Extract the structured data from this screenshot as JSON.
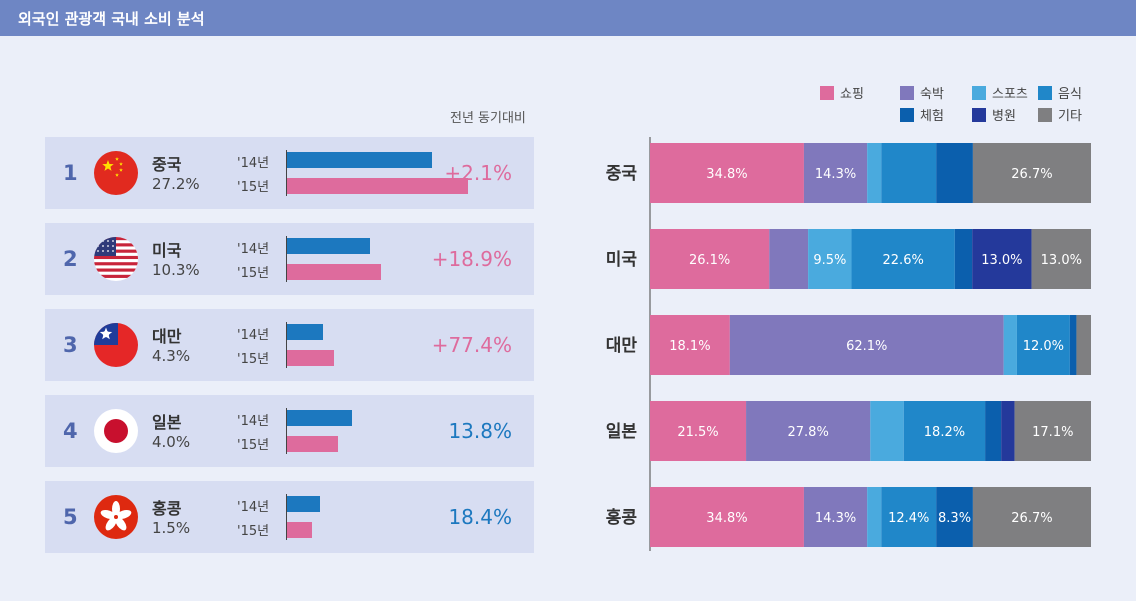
{
  "header": {
    "title": "외국인 관광객 국내 소비 분석"
  },
  "yoy_header": "전년 동기대비",
  "colors": {
    "bar14": "#1c78bf",
    "bar15": "#de6b9d",
    "up": "#de6b9d",
    "flat": "#1c78bf"
  },
  "chart_data": [
    {
      "type": "bar",
      "orientation": "horizontal",
      "series": [
        {
          "name": "'14년",
          "color": "#1c78bf",
          "values": [
            0.8,
            0.46,
            0.2,
            0.36,
            0.18
          ]
        },
        {
          "name": "'15년",
          "color": "#de6b9d",
          "values": [
            1.0,
            0.52,
            0.26,
            0.28,
            0.14
          ]
        }
      ],
      "rows": [
        {
          "rank": "1",
          "name": "중국",
          "share": "27.2%",
          "flag": "china-flag",
          "y14_label": "'14년",
          "y15_label": "'15년",
          "change": "+2.1%",
          "direction": "up"
        },
        {
          "rank": "2",
          "name": "미국",
          "share": "10.3%",
          "flag": "usa-flag",
          "y14_label": "'14년",
          "y15_label": "'15년",
          "change": "+18.9%",
          "direction": "up"
        },
        {
          "rank": "3",
          "name": "대만",
          "share": "4.3%",
          "flag": "taiwan-flag",
          "y14_label": "'14년",
          "y15_label": "'15년",
          "change": "+77.4%",
          "direction": "up"
        },
        {
          "rank": "4",
          "name": "일본",
          "share": "4.0%",
          "flag": "japan-flag",
          "y14_label": "'14년",
          "y15_label": "'15년",
          "change": "13.8%",
          "direction": "flat"
        },
        {
          "rank": "5",
          "name": "홍콩",
          "share": "1.5%",
          "flag": "hongkong-flag",
          "y14_label": "'14년",
          "y15_label": "'15년",
          "change": "18.4%",
          "direction": "flat"
        }
      ]
    },
    {
      "type": "bar",
      "stacked": true,
      "orientation": "horizontal",
      "categories": [
        "중국",
        "미국",
        "대만",
        "일본",
        "홍콩"
      ],
      "legend_position": "top-right",
      "series": [
        {
          "name": "쇼핑",
          "color": "#de6b9d",
          "values": [
            34.8,
            26.1,
            18.1,
            21.5,
            34.8
          ]
        },
        {
          "name": "숙박",
          "color": "#8078bc",
          "values": [
            14.3,
            8.5,
            62.1,
            27.8,
            14.3
          ]
        },
        {
          "name": "스포츠",
          "color": "#4aaade",
          "values": [
            3.2,
            9.5,
            3.0,
            7.5,
            3.2
          ]
        },
        {
          "name": "음식",
          "color": "#2087c9",
          "values": [
            12.4,
            22.6,
            12.0,
            18.2,
            12.4
          ]
        },
        {
          "name": "체험",
          "color": "#0b5fad",
          "values": [
            8.3,
            3.8,
            1.5,
            3.6,
            8.3
          ]
        },
        {
          "name": "병원",
          "color": "#24399b",
          "values": [
            0.0,
            13.0,
            0.0,
            3.0,
            0.0
          ]
        },
        {
          "name": "기타",
          "color": "#7f7f81",
          "values": [
            26.7,
            13.0,
            3.3,
            17.1,
            26.7
          ]
        }
      ],
      "data_labels": [
        [
          "34.8%",
          "14.3%",
          "",
          "",
          "",
          "",
          "26.7%"
        ],
        [
          "26.1%",
          "",
          "9.5%",
          "22.6%",
          "",
          "13.0%",
          "13.0%"
        ],
        [
          "18.1%",
          "62.1%",
          "",
          "12.0%",
          "",
          "",
          ""
        ],
        [
          "21.5%",
          "27.8%",
          "",
          "18.2%",
          "",
          "",
          "17.1%"
        ],
        [
          "34.8%",
          "14.3%",
          "",
          "12.4%",
          "8.3%",
          "",
          "26.7%"
        ]
      ]
    }
  ]
}
